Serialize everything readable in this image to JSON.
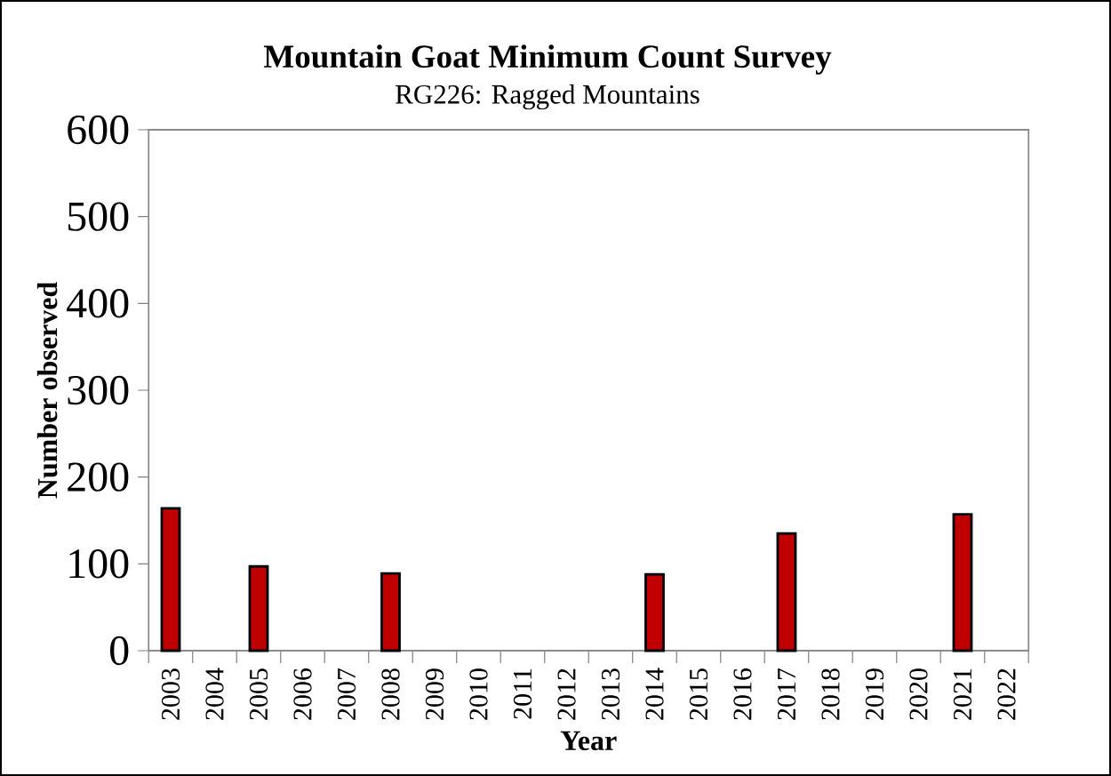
{
  "chart_data": {
    "type": "bar",
    "title": "Mountain Goat Minimum Count Survey",
    "subtitle": "RG226: Ragged Mountains",
    "xlabel": "Year",
    "ylabel": "Number observed",
    "categories": [
      "2003",
      "2004",
      "2005",
      "2006",
      "2007",
      "2008",
      "2009",
      "2010",
      "2011",
      "2012",
      "2013",
      "2014",
      "2015",
      "2016",
      "2017",
      "2018",
      "2019",
      "2020",
      "2021",
      "2022"
    ],
    "values": [
      164,
      null,
      97,
      null,
      null,
      89,
      null,
      null,
      null,
      null,
      null,
      88,
      null,
      null,
      135,
      null,
      null,
      null,
      157,
      null
    ],
    "color": "#c00000",
    "ylim": [
      0,
      600
    ],
    "yticks": [
      0,
      100,
      200,
      300,
      400,
      500,
      600
    ],
    "grid": false
  }
}
